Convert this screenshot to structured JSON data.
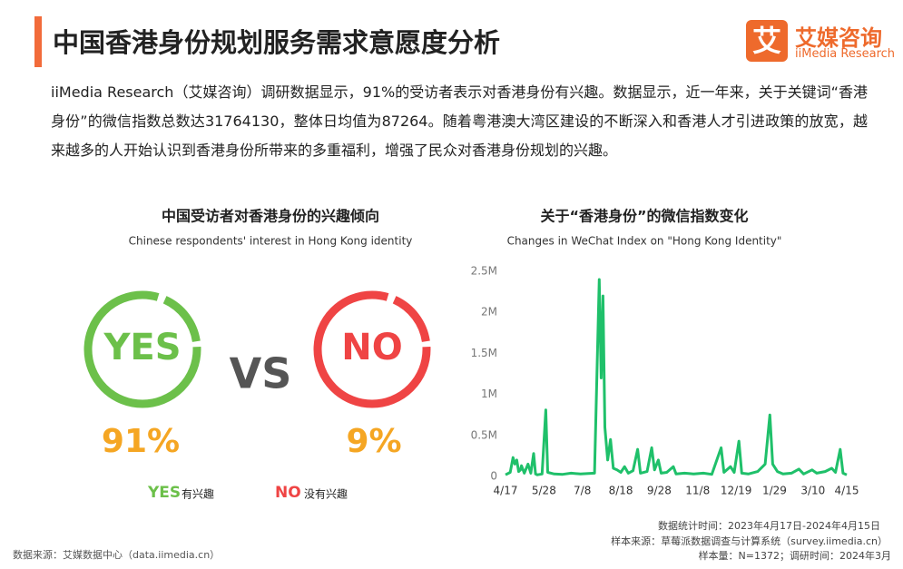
{
  "header": {
    "title": "中国香港身份规划服务需求意愿度分析",
    "logo_icon": "艾",
    "logo_name": "艾媒咨询",
    "logo_sub": "iiMedia Research"
  },
  "paragraph": "iiMedia Research（艾媒咨询）调研数据显示，91%的受访者表示对香港身份有兴趣。数据显示，近一年来，关于关键词“香港身份”的微信指数总数达31764130，整体日均值为87264。随着粤港澳大湾区建设的不断深入和香港人才引进政策的放宽，越来越多的人开始认识到香港身份所带来的多重福利，增强了民众对香港身份规划的兴趣。",
  "left_panel": {
    "title": "中国受访者对香港身份的兴趣倾向",
    "subtitle": "Chinese respondents' interest in Hong Kong identity",
    "yes_badge": "YES",
    "vs": "VS",
    "no_badge": "NO",
    "yes_percent": "91%",
    "no_percent": "9%",
    "legend_yes_key": "YES",
    "legend_yes_text": "有兴趣",
    "legend_no_key": "NO",
    "legend_no_text": "没有兴趣"
  },
  "chart_data": {
    "type": "line",
    "title": "关于“香港身份”的微信指数变化",
    "subtitle": "Changes in WeChat Index on \"Hong Kong Identity\"",
    "color": "#1fc06a",
    "x": [
      0,
      5,
      8,
      10,
      12,
      14,
      16,
      17,
      20,
      24,
      27,
      30,
      32,
      34,
      39,
      43,
      45,
      52,
      61,
      70,
      80,
      95,
      100,
      102,
      104,
      106,
      109,
      112,
      115,
      119,
      123,
      127,
      131,
      136,
      141,
      144,
      151,
      156,
      159,
      163,
      166,
      172,
      179,
      182,
      191,
      201,
      211,
      220,
      230,
      233,
      240,
      244,
      249,
      252,
      259,
      269,
      277,
      282,
      285,
      290,
      296,
      305,
      313,
      318,
      327,
      332,
      341,
      348,
      352,
      357,
      360,
      364
    ],
    "values": [
      20000,
      50000,
      230000,
      150000,
      200000,
      60000,
      80000,
      130000,
      40000,
      150000,
      40000,
      280000,
      30000,
      20000,
      30000,
      810000,
      50000,
      30000,
      25000,
      40000,
      30000,
      40000,
      2400000,
      1200000,
      2200000,
      600000,
      200000,
      450000,
      100000,
      80000,
      50000,
      120000,
      40000,
      70000,
      330000,
      40000,
      60000,
      350000,
      80000,
      200000,
      40000,
      50000,
      120000,
      30000,
      40000,
      30000,
      40000,
      25000,
      350000,
      50000,
      120000,
      50000,
      430000,
      40000,
      30000,
      60000,
      150000,
      750000,
      150000,
      60000,
      30000,
      40000,
      90000,
      30000,
      80000,
      40000,
      60000,
      100000,
      50000,
      330000,
      40000,
      20000
    ],
    "xlim": [
      0,
      364
    ],
    "xticks": [
      {
        "value": 0,
        "label": "4/17"
      },
      {
        "value": 41,
        "label": "5/28"
      },
      {
        "value": 82,
        "label": "7/8"
      },
      {
        "value": 123,
        "label": "8/18"
      },
      {
        "value": 164,
        "label": "9/28"
      },
      {
        "value": 205,
        "label": "11/8"
      },
      {
        "value": 246,
        "label": "12/19"
      },
      {
        "value": 287,
        "label": "1/29"
      },
      {
        "value": 328,
        "label": "3/10"
      },
      {
        "value": 364,
        "label": "4/15"
      }
    ],
    "ylim": [
      0,
      2500000
    ],
    "yticks": [
      0,
      {
        "value": 500000,
        "label": "0.5M"
      },
      {
        "value": 1000000,
        "label": "1M"
      },
      {
        "value": 1500000,
        "label": "1.5M"
      },
      {
        "value": 2000000,
        "label": "2M"
      },
      {
        "value": 2500000,
        "label": "2.5M"
      }
    ]
  },
  "footer": {
    "source": "数据来源：艾媒数据中心（data.iimedia.cn）",
    "period": "数据统计时间：2023年4月17日-2024年4月15日",
    "sample_source": "样本来源：草莓派数据调查与计算系统（survey.iimedia.cn）",
    "sample_size": "样本量：N=1372；调研时间：2024年3月"
  }
}
